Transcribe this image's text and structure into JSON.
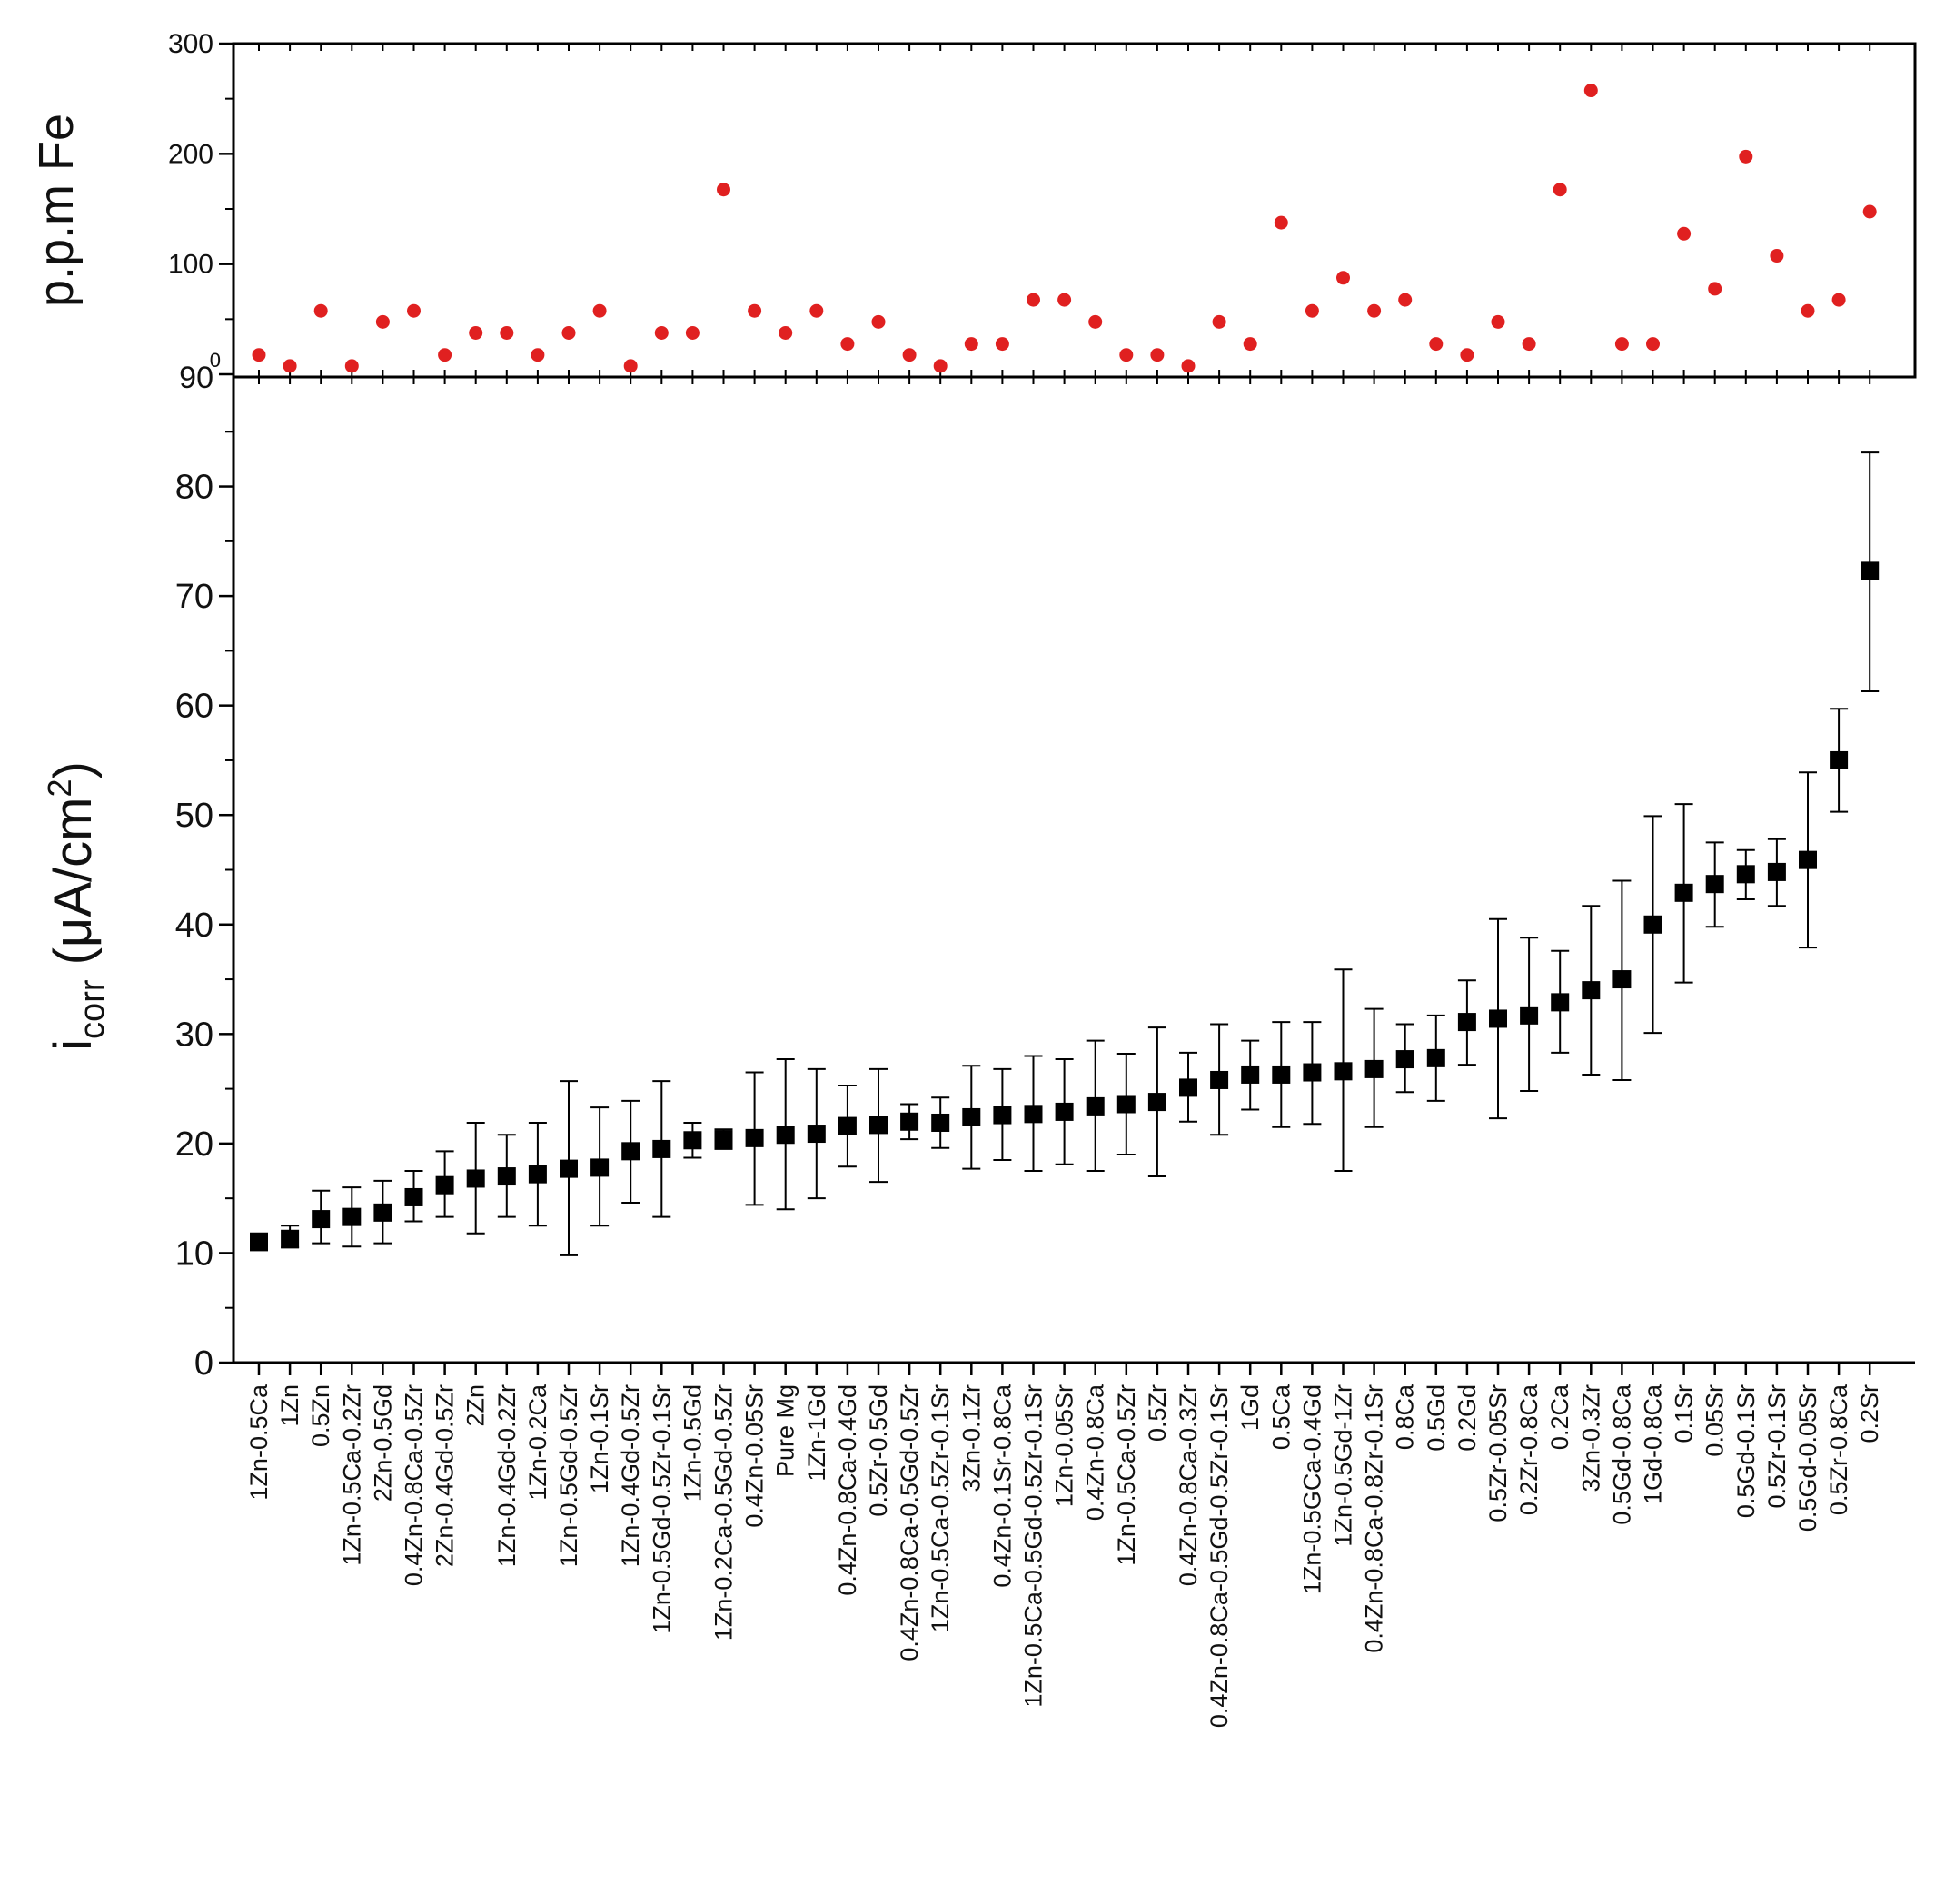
{
  "chart_data": [
    {
      "type": "scatter",
      "panel": "top",
      "ylabel": "p.p.m Fe",
      "ylim": [
        0,
        300
      ],
      "yticks": [
        "0",
        "100",
        "200",
        "300"
      ],
      "marker_color": "#e02020",
      "categories": [
        "1Zn-0.5Ca",
        "1Zn",
        "0.5Zn",
        "1Zn-0.5Ca-0.2Zr",
        "2Zn-0.5Gd",
        "0.4Zn-0.8Ca-0.5Zr",
        "2Zn-0.4Gd-0.5Zr",
        "2Zn",
        "1Zn-0.4Gd-0.2Zr",
        "1Zn-0.2Ca",
        "1Zn-0.5Gd-0.5Zr",
        "1Zn-0.1Sr",
        "1Zn-0.4Gd-0.5Zr",
        "1Zn-0.5Gd-0.5Zr-0.1Sr",
        "1Zn-0.5Gd",
        "1Zn-0.2Ca-0.5Gd-0.5Zr",
        "0.4Zn-0.05Sr",
        "Pure Mg",
        "1Zn-1Gd",
        "0.4Zn-0.8Ca-0.4Gd",
        "0.5Zr-0.5Gd",
        "0.4Zn-0.8Ca-0.5Gd-0.5Zr",
        "1Zn-0.5Ca-0.5Zr-0.1Sr",
        "3Zn-0.1Zr",
        "0.4Zn-0.1Sr-0.8Ca",
        "1Zn-0.5Ca-0.5Gd-0.5Zr-0.1Sr",
        "1Zn-0.05Sr",
        "0.4Zn-0.8Ca",
        "1Zn-0.5Ca-0.5Zr",
        "0.5Zr",
        "0.4Zn-0.8Ca-0.3Zr",
        "0.4Zn-0.8Ca-0.5Gd-0.5Zr-0.1Sr",
        "1Gd",
        "0.5Ca",
        "1Zn-0.5GCa-0.4Gd",
        "1Zn-0.5Gd-1Zr",
        "0.4Zn-0.8Ca-0.8Zr-0.1Sr",
        "0.8Ca",
        "0.5Gd",
        "0.2Gd",
        "0.5Zr-0.05Sr",
        "0.2Zr-0.8Ca",
        "0.2Ca",
        "3Zn-0.3Zr",
        "0.5Gd-0.8Ca",
        "1Gd-0.8Ca",
        "0.1Sr",
        "0.05Sr",
        "0.5Gd-0.1Sr",
        "0.5Zr-0.1Sr",
        "0.5Gd-0.05Sr",
        "0.5Zr-0.8Ca",
        "0.2Sr"
      ],
      "values": [
        20,
        10,
        60,
        10,
        50,
        60,
        20,
        40,
        40,
        20,
        40,
        60,
        10,
        40,
        40,
        170,
        60,
        40,
        60,
        30,
        50,
        20,
        10,
        30,
        30,
        70,
        70,
        50,
        20,
        20,
        10,
        50,
        30,
        140,
        60,
        90,
        60,
        70,
        30,
        20,
        50,
        30,
        170,
        260,
        30,
        30,
        130,
        80,
        200,
        110,
        60,
        70,
        150
      ],
      "label_variant": {
        "tick_90": "90",
        "tick_0_small": "0"
      }
    },
    {
      "type": "scatter_errorbar",
      "panel": "bottom",
      "ylabel_main": "i",
      "ylabel_sub": "corr",
      "ylabel_unit": "(μA/cm",
      "ylabel_sup": "2",
      "ylabel_close": ")",
      "ylim": [
        0,
        90
      ],
      "yticks": [
        "0",
        "10",
        "20",
        "30",
        "40",
        "50",
        "60",
        "70",
        "80"
      ],
      "marker_color": "#000000",
      "values": [
        11,
        11.3,
        13.1,
        13.3,
        13.7,
        15.1,
        16.2,
        16.8,
        17,
        17.2,
        17.7,
        17.8,
        19.3,
        19.5,
        20.3,
        20.4,
        20.5,
        20.8,
        20.9,
        21.6,
        21.7,
        22,
        21.9,
        22.4,
        22.6,
        22.7,
        22.9,
        23.4,
        23.6,
        23.8,
        25.1,
        25.8,
        26.3,
        26.3,
        26.5,
        26.6,
        26.8,
        27.7,
        27.8,
        31.1,
        31.4,
        31.7,
        32.9,
        34,
        35,
        40,
        42.9,
        43.7,
        44.6,
        44.8,
        45.9,
        55,
        72.3
      ],
      "err_upper": [
        11.8,
        12.5,
        15.7,
        16,
        16.6,
        17.5,
        19.3,
        21.9,
        20.8,
        21.9,
        25.7,
        23.3,
        23.9,
        25.7,
        21.9,
        21.3,
        26.5,
        27.7,
        26.8,
        25.3,
        26.8,
        23.6,
        24.2,
        27.1,
        26.8,
        28,
        27.7,
        29.4,
        28.2,
        30.6,
        28.3,
        30.9,
        29.4,
        31.1,
        31.1,
        35.9,
        32.3,
        30.9,
        31.7,
        34.9,
        40.5,
        38.8,
        37.6,
        41.7,
        44,
        49.9,
        51,
        47.5,
        46.8,
        47.8,
        53.9,
        59.7,
        83.1
      ],
      "err_lower": [
        10.3,
        10.5,
        10.9,
        10.6,
        10.9,
        12.9,
        13.3,
        11.8,
        13.3,
        12.5,
        9.8,
        12.5,
        14.6,
        13.3,
        18.7,
        19.5,
        14.4,
        14,
        15,
        17.9,
        16.5,
        20.4,
        19.6,
        17.7,
        18.5,
        17.5,
        18.1,
        17.5,
        19,
        17,
        22,
        20.8,
        23.1,
        21.5,
        21.8,
        17.5,
        21.5,
        24.7,
        23.9,
        27.2,
        22.3,
        24.8,
        28.3,
        26.3,
        25.8,
        30.1,
        34.7,
        39.8,
        42.3,
        41.7,
        37.9,
        50.3,
        61.3
      ]
    }
  ]
}
